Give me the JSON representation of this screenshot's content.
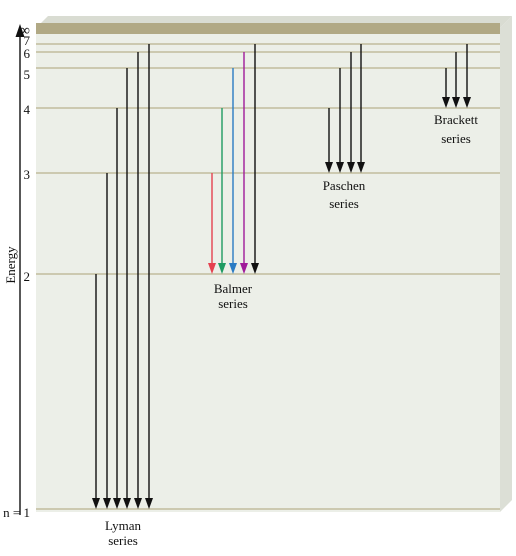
{
  "axis": {
    "label": "Energy"
  },
  "colors": {
    "panel": "#ecefe8",
    "panel_side": "#dcdfd6",
    "level_line": "#b9b28e",
    "band": "#b1a985",
    "arrow": "#111111",
    "balmer": [
      "#e5414f",
      "#1e9b62",
      "#2a7bc4",
      "#a01a9a",
      "#111111"
    ]
  },
  "levels": [
    {
      "n": 1,
      "label": "n = 1"
    },
    {
      "n": 2,
      "label": "2"
    },
    {
      "n": 3,
      "label": "3"
    },
    {
      "n": 4,
      "label": "4"
    },
    {
      "n": 5,
      "label": "5"
    },
    {
      "n": 6,
      "label": "6"
    },
    {
      "n": 7,
      "label": "7"
    },
    {
      "n": "inf",
      "label": "∞"
    }
  ],
  "series": [
    {
      "name": "Lyman",
      "label_line1": "Lyman",
      "label_line2": "series",
      "lower": 1,
      "uppers": [
        2,
        3,
        4,
        5,
        6,
        7
      ]
    },
    {
      "name": "Balmer",
      "label_line1": "Balmer",
      "label_line2": "series",
      "lower": 2,
      "uppers": [
        3,
        4,
        5,
        6,
        7
      ]
    },
    {
      "name": "Paschen",
      "label_line1": "Paschen",
      "label_line2": "series",
      "lower": 3,
      "uppers": [
        4,
        5,
        6,
        7
      ]
    },
    {
      "name": "Brackett",
      "label_line1": "Brackett",
      "label_line2": "series",
      "lower": 4,
      "uppers": [
        5,
        6,
        7
      ]
    }
  ]
}
